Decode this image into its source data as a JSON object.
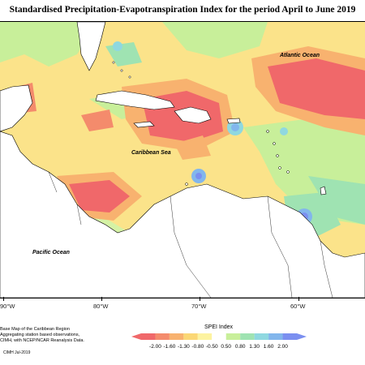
{
  "title": "Standardised Precipitation-Evapotranspiration Index for the period April to June 2019",
  "ocean_labels": {
    "atlantic": "Atlantic Ocean",
    "caribbean": "Caribbean Sea",
    "pacific": "Pacific Ocean"
  },
  "longitude_labels": [
    "90°W",
    "80°W",
    "70°W",
    "60°W"
  ],
  "legend": {
    "title": "SPEI Index",
    "labels": [
      "-2.00",
      "-1.60",
      "-1.30",
      "-0.80",
      "-0.50",
      "0.50",
      "0.80",
      "1.30",
      "1.60",
      "2.00"
    ],
    "colors": [
      "#f0686a",
      "#f48b6c",
      "#f8b26f",
      "#fbd775",
      "#fdf3a0",
      "#ffffff",
      "#c8ef9a",
      "#9fe3b2",
      "#8fd8e0",
      "#82b6ec",
      "#7b8ff0"
    ]
  },
  "credits": [
    "Base Map of the Caribbean Region",
    "Aggregating station based observations,",
    "CIMH, with NCEP/NCAR Reanalysis Data."
  ],
  "copyright": "CIMH Jul-2019",
  "colors": {
    "land": "#ffffff",
    "coast": "#000000",
    "strong_dry": "#f0686a",
    "moderate_dry": "#f8b26f",
    "mild_dry": "#fbd775",
    "near_normal": "#fdf3a0",
    "mild_wet": "#c8ef9a",
    "moderate_wet": "#9fe3b2",
    "very_wet": "#82b6ec",
    "extreme_wet": "#7b8ff0"
  }
}
